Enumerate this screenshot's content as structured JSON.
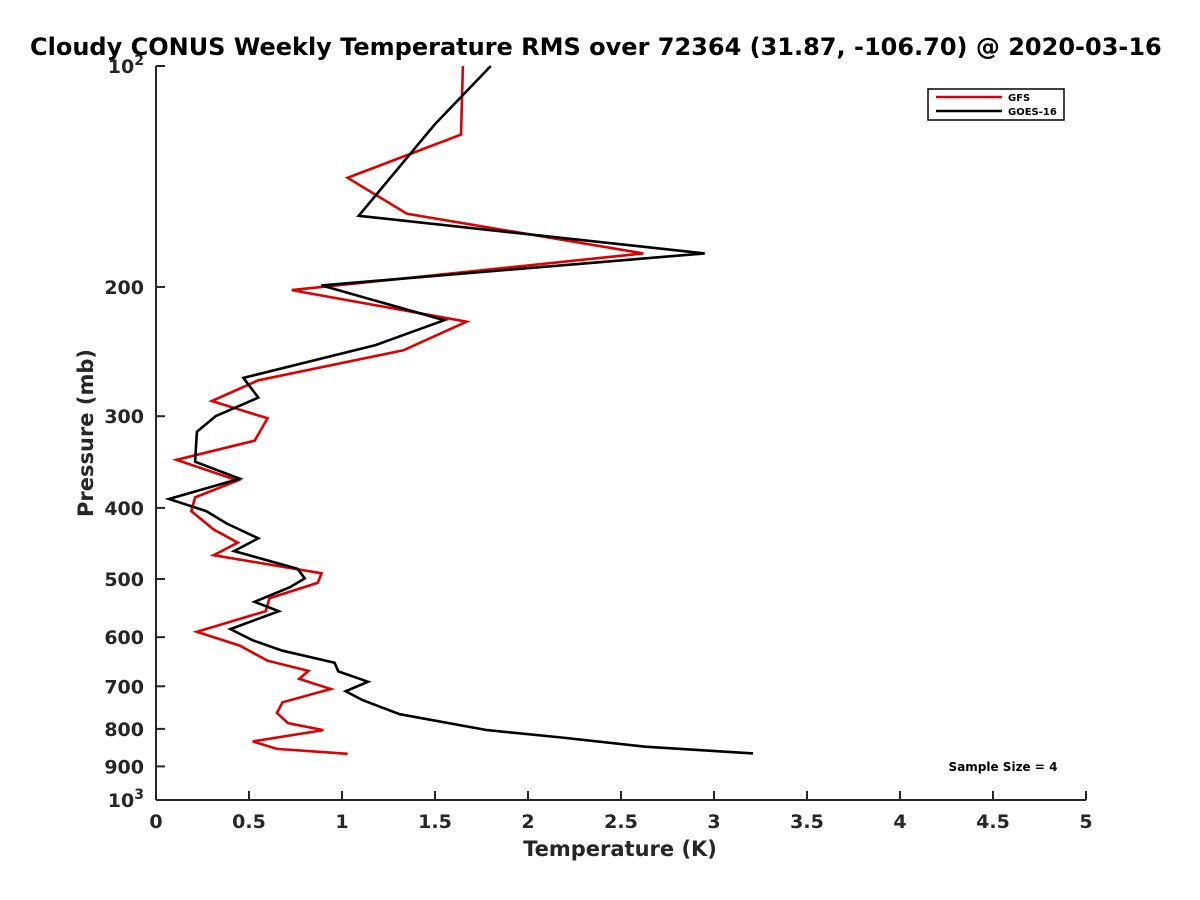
{
  "chart_data": {
    "type": "line",
    "title": "Cloudy CONUS Weekly Temperature RMS over 72364 (31.87, -106.70) @ 2020-03-16",
    "xlabel": "Temperature (K)",
    "ylabel": "Pressure (mb)",
    "xlim": [
      0,
      5
    ],
    "ylim": [
      100,
      1000
    ],
    "y_scale": "log",
    "y_reversed": true,
    "x_ticks": [
      "0",
      "0.5",
      "1",
      "1.5",
      "2",
      "2.5",
      "3",
      "3.5",
      "4",
      "4.5",
      "5"
    ],
    "y_ticks": [
      {
        "value": 100,
        "base": "10",
        "exp": "2"
      },
      {
        "value": 200,
        "label": "200"
      },
      {
        "value": 300,
        "label": "300"
      },
      {
        "value": 400,
        "label": "400"
      },
      {
        "value": 500,
        "label": "500"
      },
      {
        "value": 600,
        "label": "600"
      },
      {
        "value": 700,
        "label": "700"
      },
      {
        "value": 800,
        "label": "800"
      },
      {
        "value": 900,
        "label": "900"
      },
      {
        "value": 1000,
        "base": "10",
        "exp": "3"
      }
    ],
    "legend_position": "top-right",
    "annotation": "Sample Size = 4",
    "series": [
      {
        "name": "GFS",
        "color": "#dd0000",
        "points": [
          [
            1.65,
            100
          ],
          [
            1.64,
            124
          ],
          [
            1.03,
            142
          ],
          [
            1.35,
            159
          ],
          [
            2.62,
            180
          ],
          [
            0.73,
            202
          ],
          [
            1.67,
            223
          ],
          [
            1.33,
            244
          ],
          [
            0.55,
            268
          ],
          [
            0.3,
            286
          ],
          [
            0.6,
            302
          ],
          [
            0.53,
            324
          ],
          [
            0.11,
            344
          ],
          [
            0.44,
            367
          ],
          [
            0.21,
            387
          ],
          [
            0.19,
            404
          ],
          [
            0.31,
            428
          ],
          [
            0.44,
            446
          ],
          [
            0.31,
            464
          ],
          [
            0.89,
            491
          ],
          [
            0.87,
            506
          ],
          [
            0.61,
            531
          ],
          [
            0.59,
            553
          ],
          [
            0.22,
            590
          ],
          [
            0.45,
            616
          ],
          [
            0.6,
            646
          ],
          [
            0.82,
            667
          ],
          [
            0.77,
            684
          ],
          [
            0.94,
            706
          ],
          [
            0.68,
            736
          ],
          [
            0.65,
            761
          ],
          [
            0.71,
            786
          ],
          [
            0.9,
            803
          ],
          [
            0.52,
            832
          ],
          [
            0.65,
            852
          ],
          [
            1.03,
            865
          ]
        ]
      },
      {
        "name": "GOES-16",
        "color": "#000000",
        "points": [
          [
            1.8,
            100
          ],
          [
            1.5,
            120
          ],
          [
            1.09,
            160
          ],
          [
            2.95,
            180
          ],
          [
            0.89,
            199
          ],
          [
            1.55,
            222
          ],
          [
            1.18,
            240
          ],
          [
            0.47,
            266
          ],
          [
            0.55,
            283
          ],
          [
            0.32,
            300
          ],
          [
            0.22,
            315
          ],
          [
            0.21,
            346
          ],
          [
            0.45,
            365
          ],
          [
            0.07,
            389
          ],
          [
            0.27,
            404
          ],
          [
            0.38,
            420
          ],
          [
            0.55,
            440
          ],
          [
            0.42,
            458
          ],
          [
            0.76,
            484
          ],
          [
            0.8,
            499
          ],
          [
            0.72,
            513
          ],
          [
            0.53,
            537
          ],
          [
            0.66,
            553
          ],
          [
            0.4,
            585
          ],
          [
            0.52,
            606
          ],
          [
            0.68,
            626
          ],
          [
            0.96,
            650
          ],
          [
            0.98,
            668
          ],
          [
            1.14,
            690
          ],
          [
            1.02,
            711
          ],
          [
            1.11,
            731
          ],
          [
            1.31,
            764
          ],
          [
            1.78,
            803
          ],
          [
            2.18,
            822
          ],
          [
            2.63,
            846
          ],
          [
            3.21,
            864
          ]
        ]
      }
    ]
  }
}
